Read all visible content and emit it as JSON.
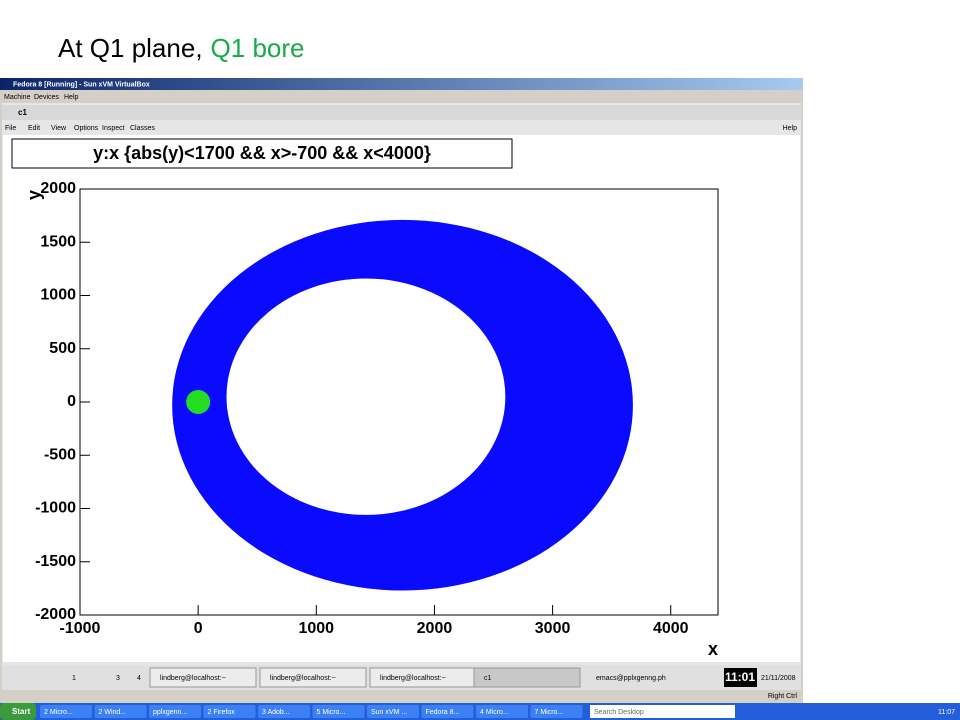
{
  "slide_title": {
    "lead": "At Q1 plane,",
    "highlight": "Q1 bore"
  },
  "vbox": {
    "title": "Fedora 8 [Running] - Sun xVM VirtualBox",
    "menu": [
      "Machine",
      "Devices",
      "Help"
    ]
  },
  "root_window": {
    "title": "c1",
    "menu": [
      "File",
      "Edit",
      "View",
      "Options",
      "Inspect",
      "Classes"
    ],
    "help": "Help"
  },
  "chart_data": {
    "type": "scatter",
    "title": "y:x {abs(y)<1700 && x>-700 && x<4000}",
    "x_label": "x",
    "y_label": "y",
    "xlim": [
      -1000,
      4400
    ],
    "ylim": [
      -2000,
      2000
    ],
    "xticks": [
      -1000,
      0,
      1000,
      2000,
      3000,
      4000
    ],
    "yticks": [
      -2000,
      -1500,
      -1000,
      -500,
      0,
      500,
      1000,
      1500,
      2000
    ],
    "band": {
      "color": "#0a0aff",
      "outer": {
        "cx": 1730,
        "cy": -30,
        "rx": 1950,
        "ry": 1740
      },
      "inner": {
        "cx": 1420,
        "cy": 50,
        "rx": 1180,
        "ry": 1110
      }
    },
    "marker": {
      "x": 0,
      "y": 0,
      "color": "#22dd22"
    }
  },
  "guest_panel": {
    "workspaces": [
      "1",
      "3",
      "4"
    ],
    "tasks": [
      "lindberg@localhost:~",
      "lindberg@localhost:~",
      "lindberg@localhost:~",
      "c1"
    ],
    "emacs": "emacs@pplxgenng.ph",
    "clock": "11:01",
    "date": "21/11/2008",
    "host_key": "Right Ctrl"
  },
  "taskbar": {
    "start": "Start",
    "items": [
      "2 Micro...",
      "2 Wind...",
      "pplxgenn...",
      "2 Firefox",
      "3 Adob...",
      "5 Micro...",
      "Sun xVM ...",
      "Fedora 8...",
      "4 Micro...",
      "7 Micro..."
    ],
    "search": "Search Desktop",
    "clock": "11:07"
  }
}
